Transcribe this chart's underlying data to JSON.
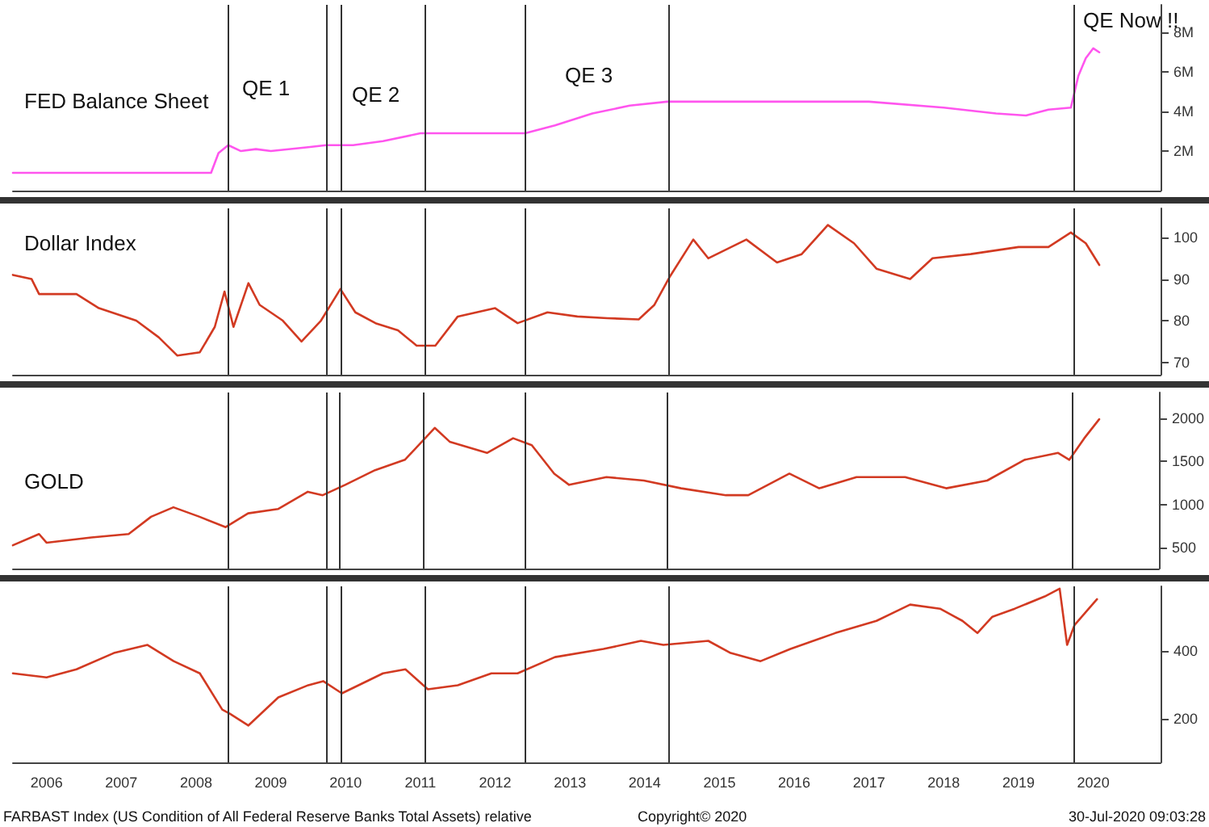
{
  "chart_data": [
    {
      "type": "line",
      "title": "FED Balance Sheet",
      "tick_labels": "y",
      "grid": false,
      "xlim": [
        2006.05,
        2021.4
      ],
      "ylim": [
        0,
        9.4
      ],
      "yticks": [
        {
          "value": 2,
          "label": "2M"
        },
        {
          "value": 4,
          "label": "4M"
        },
        {
          "value": 6,
          "label": "6M"
        },
        {
          "value": 8,
          "label": "8M"
        }
      ],
      "series": [
        {
          "color": "#ff55ee",
          "x": [
            2006.05,
            2008.7,
            2008.8,
            2008.93,
            2009.1,
            2009.3,
            2009.5,
            2010.0,
            2010.24,
            2010.6,
            2011.0,
            2011.5,
            2012.0,
            2012.9,
            2013.3,
            2013.8,
            2014.3,
            2014.8,
            2016.0,
            2017.5,
            2018.5,
            2019.2,
            2019.6,
            2019.9,
            2020.2,
            2020.3,
            2020.4,
            2020.5,
            2020.58
          ],
          "values": [
            0.9,
            0.9,
            1.9,
            2.3,
            2.0,
            2.1,
            2.0,
            2.2,
            2.3,
            2.3,
            2.5,
            2.9,
            2.9,
            2.9,
            3.3,
            3.9,
            4.3,
            4.5,
            4.5,
            4.5,
            4.2,
            3.9,
            3.8,
            4.1,
            4.2,
            5.8,
            6.7,
            7.2,
            7.0
          ]
        }
      ],
      "ref_lines": [
        {
          "axis": "x",
          "value": 2008.93
        },
        {
          "axis": "x",
          "value": 2010.24
        },
        {
          "axis": "x",
          "value": 2010.43
        },
        {
          "axis": "x",
          "value": 2011.55
        },
        {
          "axis": "x",
          "value": 2012.9
        },
        {
          "axis": "x",
          "value": 2014.81
        },
        {
          "axis": "x",
          "value": 2020.24
        }
      ],
      "annotations": [
        "QE 1",
        "QE 2",
        "QE 3",
        "QE Now !!"
      ]
    },
    {
      "type": "line",
      "title": "Dollar Index",
      "tick_labels": "y",
      "grid": false,
      "xlim": [
        2006.05,
        2021.4
      ],
      "ylim": [
        67,
        107
      ],
      "yticks": [
        70,
        80,
        90,
        100
      ],
      "series": [
        {
          "color": "#d23a22",
          "x": [
            2006.05,
            2006.3,
            2006.4,
            2006.9,
            2007.2,
            2007.7,
            2008.0,
            2008.25,
            2008.55,
            2008.75,
            2008.88,
            2009.0,
            2009.2,
            2009.35,
            2009.66,
            2009.91,
            2010.17,
            2010.43,
            2010.63,
            2010.9,
            2011.2,
            2011.45,
            2011.7,
            2012.0,
            2012.5,
            2012.8,
            2013.2,
            2013.6,
            2014.0,
            2014.42,
            2014.63,
            2014.84,
            2015.15,
            2015.35,
            2015.86,
            2016.27,
            2016.6,
            2016.95,
            2017.3,
            2017.6,
            2018.05,
            2018.35,
            2018.86,
            2019.5,
            2019.9,
            2020.2,
            2020.4,
            2020.58
          ],
          "values": [
            91,
            90,
            86.4,
            86.4,
            83,
            80,
            76,
            71.6,
            72.4,
            78.5,
            87,
            78.5,
            89,
            83.8,
            80,
            75,
            80,
            87.6,
            82,
            79.4,
            77.7,
            74,
            74,
            81,
            83,
            79.4,
            82,
            81,
            80.6,
            80.3,
            83.8,
            90.7,
            99.5,
            95,
            99.5,
            94,
            96,
            103,
            98.6,
            92.5,
            90,
            95,
            96,
            97.7,
            97.7,
            101.2,
            98.6,
            93.4
          ]
        }
      ],
      "ref_lines": [
        {
          "axis": "x",
          "value": 2008.93
        },
        {
          "axis": "x",
          "value": 2010.24
        },
        {
          "axis": "x",
          "value": 2010.43
        },
        {
          "axis": "x",
          "value": 2011.55
        },
        {
          "axis": "x",
          "value": 2012.9
        },
        {
          "axis": "x",
          "value": 2014.81
        },
        {
          "axis": "x",
          "value": 2020.24
        }
      ]
    },
    {
      "type": "line",
      "title": "GOLD",
      "tick_labels": "y",
      "grid": false,
      "xlim": [
        2006.05,
        2021.4
      ],
      "ylim": [
        260,
        2300
      ],
      "yticks": [
        500,
        1000,
        1500,
        2000
      ],
      "series": [
        {
          "color": "#d23a22",
          "x": [
            2006.05,
            2006.4,
            2006.5,
            2007.1,
            2007.6,
            2007.9,
            2008.2,
            2008.55,
            2008.9,
            2009.2,
            2009.6,
            2010.0,
            2010.2,
            2010.5,
            2010.9,
            2011.3,
            2011.7,
            2011.9,
            2012.4,
            2012.75,
            2013.0,
            2013.3,
            2013.5,
            2014.0,
            2014.5,
            2015.0,
            2015.6,
            2015.9,
            2016.45,
            2016.85,
            2017.35,
            2018.0,
            2018.55,
            2019.1,
            2019.6,
            2020.05,
            2020.2,
            2020.4,
            2020.6
          ],
          "values": [
            530,
            660,
            560,
            620,
            660,
            860,
            970,
            860,
            740,
            900,
            950,
            1150,
            1110,
            1230,
            1400,
            1520,
            1890,
            1730,
            1600,
            1770,
            1690,
            1360,
            1230,
            1320,
            1280,
            1190,
            1110,
            1110,
            1360,
            1190,
            1320,
            1320,
            1190,
            1280,
            1520,
            1600,
            1520,
            1770,
            1990
          ]
        }
      ],
      "ref_lines": [
        {
          "axis": "x",
          "value": 2008.93
        },
        {
          "axis": "x",
          "value": 2010.24
        },
        {
          "axis": "x",
          "value": 2010.43
        },
        {
          "axis": "x",
          "value": 2011.55
        },
        {
          "axis": "x",
          "value": 2012.9
        },
        {
          "axis": "x",
          "value": 2014.81
        },
        {
          "axis": "x",
          "value": 2020.24
        }
      ]
    },
    {
      "type": "line",
      "grid": false,
      "xlim": [
        2006.05,
        2021.4
      ],
      "ylim": [
        70,
        590
      ],
      "yticks": [
        200,
        400
      ],
      "xticks": [
        {
          "value": 2006.5,
          "label": "2006"
        },
        {
          "value": 2007.5,
          "label": "2007"
        },
        {
          "value": 2008.5,
          "label": "2008"
        },
        {
          "value": 2009.5,
          "label": "2009"
        },
        {
          "value": 2010.5,
          "label": "2010"
        },
        {
          "value": 2011.5,
          "label": "2011"
        },
        {
          "value": 2012.5,
          "label": "2012"
        },
        {
          "value": 2013.5,
          "label": "2013"
        },
        {
          "value": 2014.5,
          "label": "2014"
        },
        {
          "value": 2015.5,
          "label": "2015"
        },
        {
          "value": 2016.5,
          "label": "2016"
        },
        {
          "value": 2017.5,
          "label": "2017"
        },
        {
          "value": 2018.5,
          "label": "2018"
        },
        {
          "value": 2019.5,
          "label": "2019"
        },
        {
          "value": 2020.5,
          "label": "2020"
        }
      ],
      "series": [
        {
          "color": "#d23a22",
          "x": [
            2006.05,
            2006.5,
            2006.9,
            2007.4,
            2007.85,
            2008.2,
            2008.55,
            2008.85,
            2008.95,
            2009.2,
            2009.6,
            2010.0,
            2010.2,
            2010.45,
            2011.0,
            2011.3,
            2011.6,
            2012.0,
            2012.45,
            2012.8,
            2013.3,
            2013.95,
            2014.45,
            2014.75,
            2015.35,
            2015.65,
            2016.05,
            2016.45,
            2017.05,
            2017.6,
            2018.05,
            2018.45,
            2018.75,
            2018.95,
            2019.15,
            2019.45,
            2019.85,
            2020.05,
            2020.15,
            2020.25,
            2020.55
          ],
          "values": [
            333,
            321,
            345,
            393,
            417,
            369,
            333,
            226,
            214,
            179,
            262,
            298,
            310,
            274,
            333,
            345,
            286,
            298,
            333,
            333,
            381,
            405,
            429,
            417,
            429,
            393,
            369,
            405,
            452,
            488,
            536,
            524,
            488,
            452,
            500,
            524,
            560,
            583,
            417,
            476,
            552
          ]
        }
      ],
      "ref_lines": [
        {
          "axis": "x",
          "value": 2008.93
        },
        {
          "axis": "x",
          "value": 2010.24
        },
        {
          "axis": "x",
          "value": 2010.43
        },
        {
          "axis": "x",
          "value": 2011.55
        },
        {
          "axis": "x",
          "value": 2012.9
        },
        {
          "axis": "x",
          "value": 2014.81
        },
        {
          "axis": "x",
          "value": 2020.24
        }
      ],
      "annotations": [
        "FARBAST Index (US Condition of All Federal Reserve Banks Total Assets) relative",
        "Copyright© 2020",
        "30-Jul-2020 09:03:28"
      ]
    }
  ]
}
